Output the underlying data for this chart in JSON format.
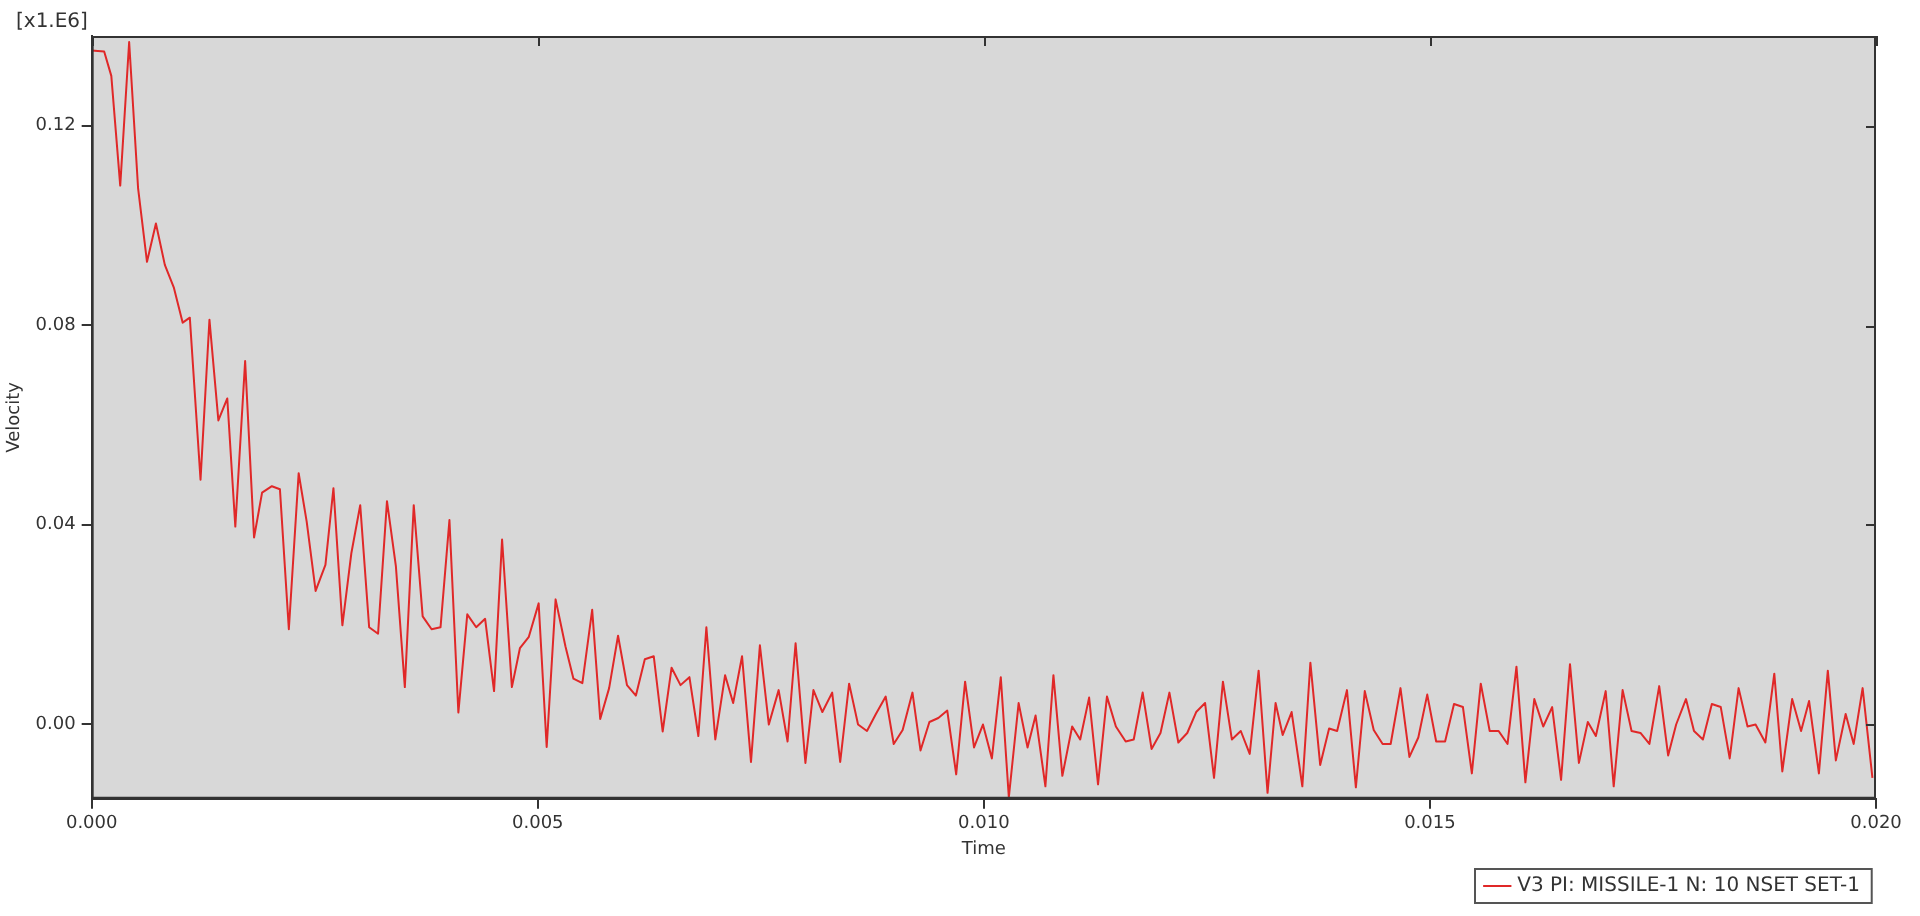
{
  "chart_data": {
    "type": "line",
    "xlabel": "Time",
    "ylabel": "Velocity",
    "annotations": [
      "[x1.E6]"
    ],
    "xlim": [
      0,
      0.02
    ],
    "ylim": [
      -0.015,
      0.138
    ],
    "xticks": [
      {
        "value": 0,
        "label": "0.000"
      },
      {
        "value": 0.005,
        "label": "0.005"
      },
      {
        "value": 0.01,
        "label": "0.010"
      },
      {
        "value": 0.015,
        "label": "0.015"
      },
      {
        "value": 0.02,
        "label": "0.020"
      }
    ],
    "yticks": [
      {
        "value": 0,
        "label": "0.00"
      },
      {
        "value": 0.04,
        "label": "0.04"
      },
      {
        "value": 0.08,
        "label": "0.08"
      },
      {
        "value": 0.12,
        "label": "0.12"
      }
    ],
    "grid": false,
    "legend": "bottom right",
    "line_style": "solid",
    "series": [
      {
        "name": "V3 PI: MISSILE-1 N: 10 NSET SET-1",
        "color": "#e02828",
        "x": [
          0,
          0.00014,
          0.00022,
          0.00032,
          0.00042,
          0.00052,
          0.00062,
          0.00072,
          0.00082,
          0.00092,
          0.00102,
          0.0011,
          0.00122,
          0.00132,
          0.00142,
          0.00152,
          0.00161,
          0.00172,
          0.00182,
          0.00191,
          0.00202,
          0.00211,
          0.00221,
          0.00232,
          0.00241,
          0.00251,
          0.00262,
          0.00271,
          0.00281,
          0.00291,
          0.00301,
          0.00311,
          0.00321,
          0.00331,
          0.00341,
          0.00351,
          0.00361,
          0.00371,
          0.00381,
          0.00391,
          0.00401,
          0.00411,
          0.00421,
          0.00431,
          0.00441,
          0.00451,
          0.0046,
          0.00471,
          0.0048,
          0.0049,
          0.00501,
          0.0051,
          0.0052,
          0.00531,
          0.0054,
          0.0055,
          0.00561,
          0.0057,
          0.0058,
          0.0059,
          0.006,
          0.0061,
          0.0062,
          0.0063,
          0.0064,
          0.0065,
          0.0066,
          0.0067,
          0.0068,
          0.00689,
          0.00699,
          0.0071,
          0.00719,
          0.00729,
          0.00739,
          0.00749,
          0.00759,
          0.0077,
          0.0078,
          0.00789,
          0.008,
          0.00809,
          0.00819,
          0.0083,
          0.00839,
          0.00849,
          0.00859,
          0.00869,
          0.00879,
          0.0089,
          0.00899,
          0.00909,
          0.0092,
          0.00929,
          0.00939,
          0.00949,
          0.00959,
          0.00969,
          0.00979,
          0.00989,
          0.00999,
          0.01009,
          0.01019,
          0.01028,
          0.01039,
          0.01049,
          0.01058,
          0.01069,
          0.01078,
          0.01088,
          0.01099,
          0.01108,
          0.01118,
          0.01128,
          0.01138,
          0.01148,
          0.01159,
          0.01168,
          0.01178,
          0.01188,
          0.01198,
          0.01208,
          0.01218,
          0.01228,
          0.01238,
          0.01248,
          0.01258,
          0.01268,
          0.01278,
          0.01288,
          0.01298,
          0.01308,
          0.01318,
          0.01327,
          0.01335,
          0.01345,
          0.01357,
          0.01366,
          0.01377,
          0.01387,
          0.01396,
          0.01407,
          0.01417,
          0.01427,
          0.01437,
          0.01447,
          0.01456,
          0.01467,
          0.01477,
          0.01487,
          0.01497,
          0.01507,
          0.01517,
          0.01527,
          0.01537,
          0.01547,
          0.01557,
          0.01567,
          0.01577,
          0.01587,
          0.01597,
          0.01607,
          0.01617,
          0.01627,
          0.01637,
          0.01647,
          0.01657,
          0.01667,
          0.01677,
          0.01686,
          0.01697,
          0.01706,
          0.01716,
          0.01726,
          0.01736,
          0.01746,
          0.01757,
          0.01767,
          0.01776,
          0.01787,
          0.01796,
          0.01806,
          0.01816,
          0.01826,
          0.01836,
          0.01846,
          0.01856,
          0.01865,
          0.01876,
          0.01886,
          0.01895,
          0.01906,
          0.01916,
          0.01925,
          0.01936,
          0.01946,
          0.01955,
          0.01966,
          0.01975,
          0.01985,
          0.01996
        ],
        "values": [
          0.1351,
          0.1349,
          0.13,
          0.108,
          0.1368,
          0.1075,
          0.0927,
          0.1004,
          0.0921,
          0.0876,
          0.0805,
          0.0815,
          0.049,
          0.0811,
          0.0609,
          0.0653,
          0.0396,
          0.0728,
          0.0374,
          0.0464,
          0.0477,
          0.0471,
          0.019,
          0.0503,
          0.0406,
          0.0267,
          0.0319,
          0.0473,
          0.0198,
          0.0342,
          0.0439,
          0.0194,
          0.0181,
          0.0447,
          0.0316,
          0.0074,
          0.0439,
          0.0216,
          0.019,
          0.0194,
          0.0409,
          0.0023,
          0.022,
          0.0194,
          0.0211,
          0.0066,
          0.037,
          0.0074,
          0.0152,
          0.0175,
          0.0242,
          -0.0046,
          0.025,
          0.0156,
          0.0091,
          0.0082,
          0.0229,
          0.001,
          0.0072,
          0.0177,
          0.0078,
          0.0057,
          0.013,
          0.0136,
          -0.0015,
          0.0113,
          0.0078,
          0.0094,
          -0.0024,
          0.0194,
          -0.0031,
          0.0098,
          0.0042,
          0.0136,
          -0.0076,
          0.0158,
          -0.0001,
          0.0068,
          -0.0035,
          0.0162,
          -0.0078,
          0.0068,
          0.0024,
          0.0063,
          -0.0076,
          0.0081,
          -0.0001,
          -0.0014,
          0.002,
          0.0055,
          -0.004,
          -0.0012,
          0.0063,
          -0.0053,
          0.0004,
          0.0012,
          0.0027,
          -0.0101,
          0.0085,
          -0.0047,
          -0.0001,
          -0.0069,
          0.0094,
          -0.0147,
          0.0042,
          -0.0047,
          0.0017,
          -0.0125,
          0.0098,
          -0.0104,
          -0.0005,
          -0.0031,
          0.0053,
          -0.0121,
          0.0055,
          -0.0005,
          -0.0035,
          -0.0031,
          0.0063,
          -0.005,
          -0.0018,
          0.0063,
          -0.0037,
          -0.0018,
          0.0024,
          0.0042,
          -0.0108,
          0.0085,
          -0.0031,
          -0.0014,
          -0.006,
          0.0107,
          -0.0138,
          0.0042,
          -0.0022,
          0.0024,
          -0.0125,
          0.0123,
          -0.0082,
          -0.0009,
          -0.0014,
          0.0068,
          -0.0127,
          0.0066,
          -0.0012,
          -0.004,
          -0.004,
          0.0072,
          -0.0066,
          -0.0027,
          0.0059,
          -0.0035,
          -0.0035,
          0.004,
          0.0034,
          -0.0099,
          0.0081,
          -0.0014,
          -0.0014,
          -0.004,
          0.0115,
          -0.0117,
          0.005,
          -0.0005,
          0.0034,
          -0.0112,
          0.012,
          -0.0078,
          0.0004,
          -0.0024,
          0.0066,
          -0.0125,
          0.0068,
          -0.0014,
          -0.0018,
          -0.004,
          0.0076,
          -0.0063,
          -0.0001,
          0.005,
          -0.0014,
          -0.0031,
          0.004,
          0.0034,
          -0.0069,
          0.0072,
          -0.0005,
          -0.0001,
          -0.0037,
          0.0101,
          -0.0095,
          0.005,
          -0.0014,
          0.0046,
          -0.0099,
          0.0107,
          -0.0073,
          0.002,
          -0.004,
          0.0072,
          -0.0108
        ]
      }
    ]
  }
}
